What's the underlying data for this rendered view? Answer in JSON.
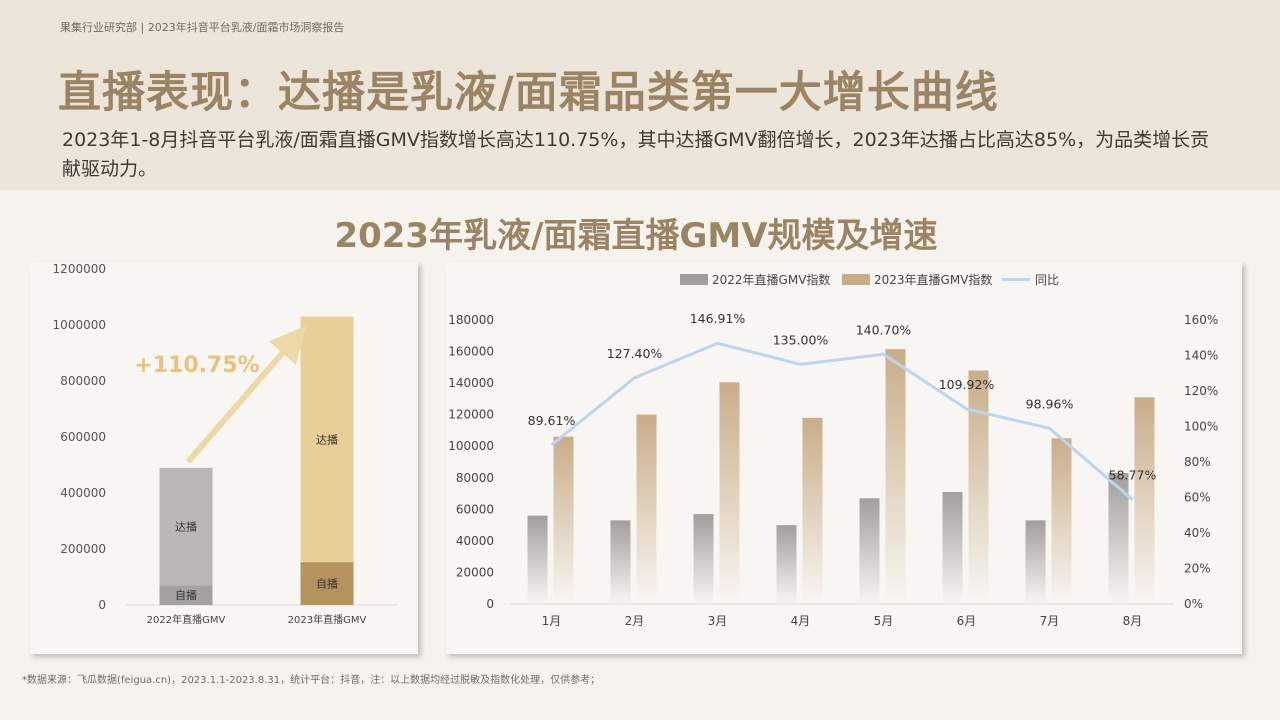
{
  "header": {
    "source_tag": "果集行业研究部 | 2023年抖音平台乳液/面霜市场洞察报告",
    "title": "直播表现：达播是乳液/面霜品类第一大增长曲线",
    "subtitle": "2023年1-8月抖音平台乳液/面霜直播GMV指数增长高达110.75%，其中达播GMV翻倍增长，2023年达播占比高达85%，为品类增长贡献驱动力。"
  },
  "section_title": "2023年乳液/面霜直播GMV规模及增速",
  "footnote": "*数据来源：飞瓜数据(feigua.cn)，2023.1.1-2023.8.31，统计平台：抖音，注：以上数据均经过脱敏及指数化处理，仅供参考；",
  "colors": {
    "gray_bar": "#b9b8b7",
    "gray_self": "#a3a2a0",
    "gold_bar": "#e7cf97",
    "gold_self": "#b5935e",
    "arrow": "#edd9a8",
    "growth_text": "#e6c47f",
    "line": "#bcd4f1",
    "bar2022": "#a19f9c",
    "bar2023": "#c9ad89"
  },
  "chart_data": [
    {
      "type": "bar",
      "stacked": true,
      "categories": [
        "2022年直播GMV",
        "2023年直播GMV"
      ],
      "series": [
        {
          "name": "自播",
          "values": [
            70000,
            153000
          ]
        },
        {
          "name": "达播",
          "values": [
            420000,
            877000
          ]
        }
      ],
      "annotation": "+110.75%",
      "ylim": [
        0,
        1200000
      ],
      "yticks": [
        "0",
        "200000",
        "400000",
        "600000",
        "800000",
        "1000000",
        "1200000"
      ],
      "grid": false
    },
    {
      "type": "bar",
      "categories": [
        "1月",
        "2月",
        "3月",
        "4月",
        "5月",
        "6月",
        "7月",
        "8月"
      ],
      "series": [
        {
          "name": "2022年直播GMV指数",
          "type": "bar",
          "axis": "left",
          "values": [
            56000,
            53000,
            57000,
            50000,
            67000,
            71000,
            53000,
            83000
          ]
        },
        {
          "name": "2023年直播GMV指数",
          "type": "bar",
          "axis": "left",
          "values": [
            106000,
            120000,
            140500,
            118000,
            161500,
            148000,
            105000,
            131000
          ]
        },
        {
          "name": "同比",
          "type": "line",
          "axis": "right",
          "values": [
            89.61,
            127.4,
            146.91,
            135.0,
            140.7,
            109.92,
            98.96,
            58.77
          ],
          "labels": [
            "89.61%",
            "127.40%",
            "146.91%",
            "135.00%",
            "140.70%",
            "109.92%",
            "98.96%",
            "58.77%"
          ]
        }
      ],
      "ylim": [
        0,
        180000
      ],
      "yticks": [
        "0",
        "20000",
        "40000",
        "60000",
        "80000",
        "100000",
        "120000",
        "140000",
        "160000",
        "180000"
      ],
      "y2lim": [
        0,
        160
      ],
      "y2ticks": [
        "0%",
        "20%",
        "40%",
        "60%",
        "80%",
        "100%",
        "120%",
        "140%",
        "160%"
      ],
      "legend": "top",
      "grid": false
    }
  ]
}
